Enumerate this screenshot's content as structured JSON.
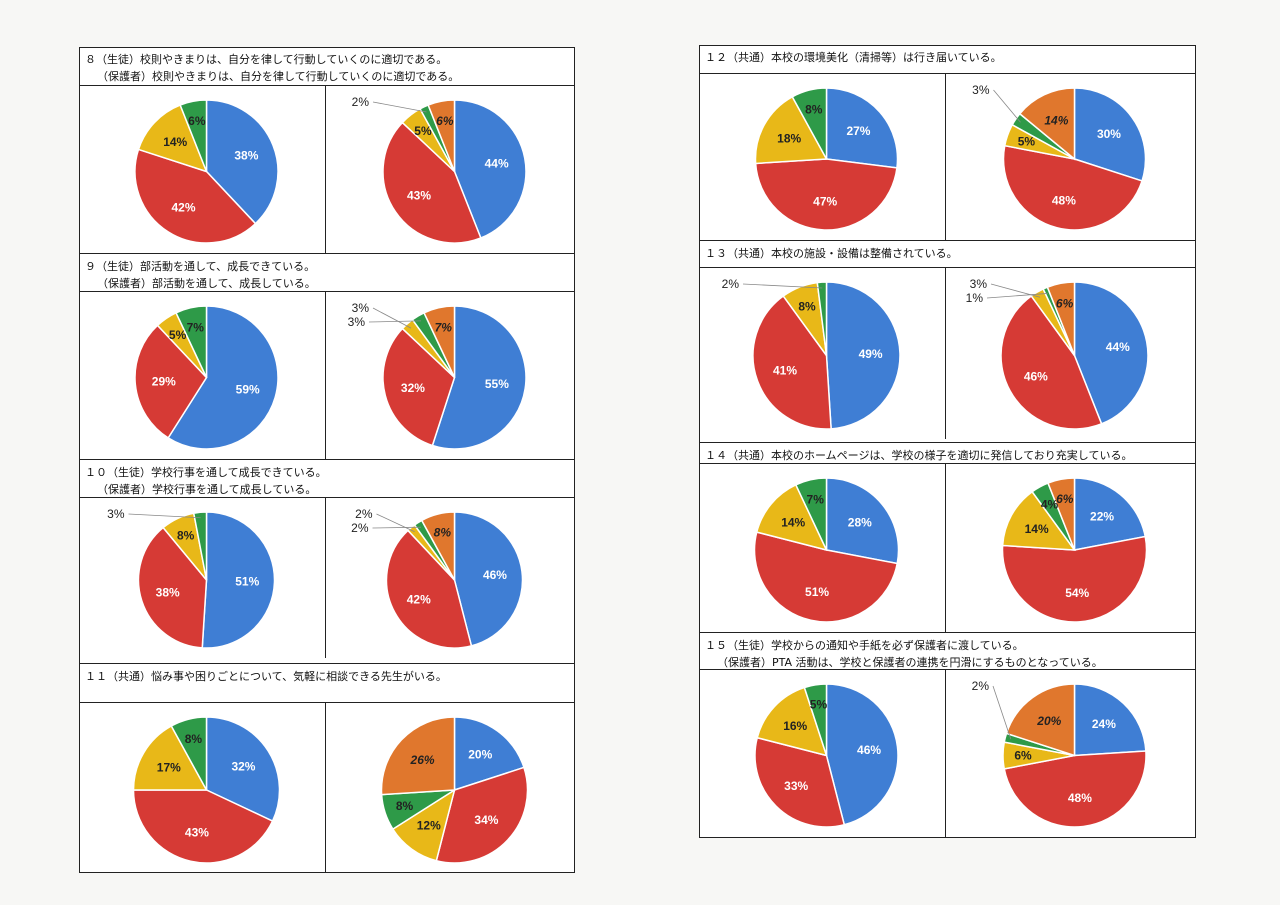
{
  "colors": {
    "blue": "#3f7ed4",
    "red": "#d63a35",
    "yellow": "#e8b818",
    "green": "#2e9a48",
    "orange": "#e0772d"
  },
  "questions": [
    {
      "id": "q8",
      "line1": "８（生徒）校則やきまりは、自分を律して行動していくのに適切である。",
      "line2": "（保護者）校則やきまりは、自分を律して行動していくのに適切である。"
    },
    {
      "id": "q9",
      "line1": "９（生徒）部活動を通して、成長できている。",
      "line2": "（保護者）部活動を通して、成長している。"
    },
    {
      "id": "q10",
      "line1": "１０（生徒）学校行事を通して成長できている。",
      "line2": "（保護者）学校行事を通して成長している。"
    },
    {
      "id": "q11",
      "line1": "１１（共通）悩み事や困りごとについて、気軽に相談できる先生がいる。",
      "line2": ""
    },
    {
      "id": "q12",
      "line1": "１２（共通）本校の環境美化（清掃等）は行き届いている。",
      "line2": ""
    },
    {
      "id": "q13",
      "line1": "１３（共通）本校の施設・設備は整備されている。",
      "line2": ""
    },
    {
      "id": "q14",
      "line1": "１４（共通）本校のホームページは、学校の様子を適切に発信しており充実している。",
      "line2": ""
    },
    {
      "id": "q15",
      "line1": "１５（生徒）学校からの通知や手紙を必ず保護者に渡している。",
      "line2": "（保護者）PTA 活動は、学校と保護者の連携を円滑にするものとなっている。"
    }
  ],
  "chart_data": [
    {
      "type": "pie",
      "question": "q8",
      "side": "left",
      "slices": [
        {
          "value": 38,
          "label": "38%",
          "color": "blue"
        },
        {
          "value": 42,
          "label": "42%",
          "color": "red"
        },
        {
          "value": 14,
          "label": "14%",
          "color": "yellow"
        },
        {
          "value": 6,
          "label": "6%",
          "color": "green"
        }
      ]
    },
    {
      "type": "pie",
      "question": "q8",
      "side": "right",
      "slices": [
        {
          "value": 44,
          "label": "44%",
          "color": "blue"
        },
        {
          "value": 43,
          "label": "43%",
          "color": "red"
        },
        {
          "value": 5,
          "label": "5%",
          "color": "yellow"
        },
        {
          "value": 2,
          "label": "2%",
          "color": "green"
        },
        {
          "value": 6,
          "label": "6%",
          "color": "orange"
        }
      ]
    },
    {
      "type": "pie",
      "question": "q9",
      "side": "left",
      "slices": [
        {
          "value": 59,
          "label": "59%",
          "color": "blue"
        },
        {
          "value": 29,
          "label": "29%",
          "color": "red"
        },
        {
          "value": 5,
          "label": "5%",
          "color": "yellow"
        },
        {
          "value": 7,
          "label": "7%",
          "color": "green"
        }
      ]
    },
    {
      "type": "pie",
      "question": "q9",
      "side": "right",
      "slices": [
        {
          "value": 55,
          "label": "55%",
          "color": "blue"
        },
        {
          "value": 32,
          "label": "32%",
          "color": "red"
        },
        {
          "value": 3,
          "label": "3%",
          "color": "yellow"
        },
        {
          "value": 3,
          "label": "3%",
          "color": "green"
        },
        {
          "value": 7,
          "label": "7%",
          "color": "orange"
        }
      ]
    },
    {
      "type": "pie",
      "question": "q10",
      "side": "left",
      "slices": [
        {
          "value": 51,
          "label": "51%",
          "color": "blue"
        },
        {
          "value": 38,
          "label": "38%",
          "color": "red"
        },
        {
          "value": 8,
          "label": "8%",
          "color": "yellow"
        },
        {
          "value": 3,
          "label": "3%",
          "color": "green"
        }
      ]
    },
    {
      "type": "pie",
      "question": "q10",
      "side": "right",
      "slices": [
        {
          "value": 46,
          "label": "46%",
          "color": "blue"
        },
        {
          "value": 42,
          "label": "42%",
          "color": "red"
        },
        {
          "value": 2,
          "label": "2%",
          "color": "yellow"
        },
        {
          "value": 2,
          "label": "2%",
          "color": "green"
        },
        {
          "value": 8,
          "label": "8%",
          "color": "orange"
        }
      ]
    },
    {
      "type": "pie",
      "question": "q11",
      "side": "left",
      "slices": [
        {
          "value": 32,
          "label": "32%",
          "color": "blue"
        },
        {
          "value": 43,
          "label": "43%",
          "color": "red"
        },
        {
          "value": 17,
          "label": "17%",
          "color": "yellow"
        },
        {
          "value": 8,
          "label": "8%",
          "color": "green"
        }
      ]
    },
    {
      "type": "pie",
      "question": "q11",
      "side": "right",
      "slices": [
        {
          "value": 20,
          "label": "20%",
          "color": "blue"
        },
        {
          "value": 34,
          "label": "34%",
          "color": "red"
        },
        {
          "value": 12,
          "label": "12%",
          "color": "yellow"
        },
        {
          "value": 8,
          "label": "8%",
          "color": "green"
        },
        {
          "value": 26,
          "label": "26%",
          "color": "orange"
        }
      ]
    },
    {
      "type": "pie",
      "question": "q12",
      "side": "left",
      "slices": [
        {
          "value": 27,
          "label": "27%",
          "color": "blue"
        },
        {
          "value": 47,
          "label": "47%",
          "color": "red"
        },
        {
          "value": 18,
          "label": "18%",
          "color": "yellow"
        },
        {
          "value": 8,
          "label": "8%",
          "color": "green"
        }
      ]
    },
    {
      "type": "pie",
      "question": "q12",
      "side": "right",
      "slices": [
        {
          "value": 30,
          "label": "30%",
          "color": "blue"
        },
        {
          "value": 48,
          "label": "48%",
          "color": "red"
        },
        {
          "value": 5,
          "label": "5%",
          "color": "yellow"
        },
        {
          "value": 3,
          "label": "3%",
          "color": "green"
        },
        {
          "value": 14,
          "label": "14%",
          "color": "orange"
        }
      ]
    },
    {
      "type": "pie",
      "question": "q13",
      "side": "left",
      "slices": [
        {
          "value": 49,
          "label": "49%",
          "color": "blue"
        },
        {
          "value": 41,
          "label": "41%",
          "color": "red"
        },
        {
          "value": 8,
          "label": "8%",
          "color": "yellow"
        },
        {
          "value": 2,
          "label": "2%",
          "color": "green"
        }
      ]
    },
    {
      "type": "pie",
      "question": "q13",
      "side": "right",
      "slices": [
        {
          "value": 44,
          "label": "44%",
          "color": "blue"
        },
        {
          "value": 46,
          "label": "46%",
          "color": "red"
        },
        {
          "value": 3,
          "label": "3%",
          "color": "yellow"
        },
        {
          "value": 1,
          "label": "1%",
          "color": "green"
        },
        {
          "value": 6,
          "label": "6%",
          "color": "orange"
        }
      ]
    },
    {
      "type": "pie",
      "question": "q14",
      "side": "left",
      "slices": [
        {
          "value": 28,
          "label": "28%",
          "color": "blue"
        },
        {
          "value": 51,
          "label": "51%",
          "color": "red"
        },
        {
          "value": 14,
          "label": "14%",
          "color": "yellow"
        },
        {
          "value": 7,
          "label": "7%",
          "color": "green"
        }
      ]
    },
    {
      "type": "pie",
      "question": "q14",
      "side": "right",
      "slices": [
        {
          "value": 22,
          "label": "22%",
          "color": "blue"
        },
        {
          "value": 54,
          "label": "54%",
          "color": "red"
        },
        {
          "value": 14,
          "label": "14%",
          "color": "yellow"
        },
        {
          "value": 4,
          "label": "4%",
          "color": "green"
        },
        {
          "value": 6,
          "label": "6%",
          "color": "orange"
        }
      ]
    },
    {
      "type": "pie",
      "question": "q15",
      "side": "left",
      "slices": [
        {
          "value": 46,
          "label": "46%",
          "color": "blue"
        },
        {
          "value": 33,
          "label": "33%",
          "color": "red"
        },
        {
          "value": 16,
          "label": "16%",
          "color": "yellow"
        },
        {
          "value": 5,
          "label": "5%",
          "color": "green"
        }
      ]
    },
    {
      "type": "pie",
      "question": "q15",
      "side": "right",
      "slices": [
        {
          "value": 24,
          "label": "24%",
          "color": "blue"
        },
        {
          "value": 48,
          "label": "48%",
          "color": "red"
        },
        {
          "value": 6,
          "label": "6%",
          "color": "yellow"
        },
        {
          "value": 2,
          "label": "2%",
          "color": "green"
        },
        {
          "value": 20,
          "label": "20%",
          "color": "orange"
        }
      ]
    }
  ]
}
